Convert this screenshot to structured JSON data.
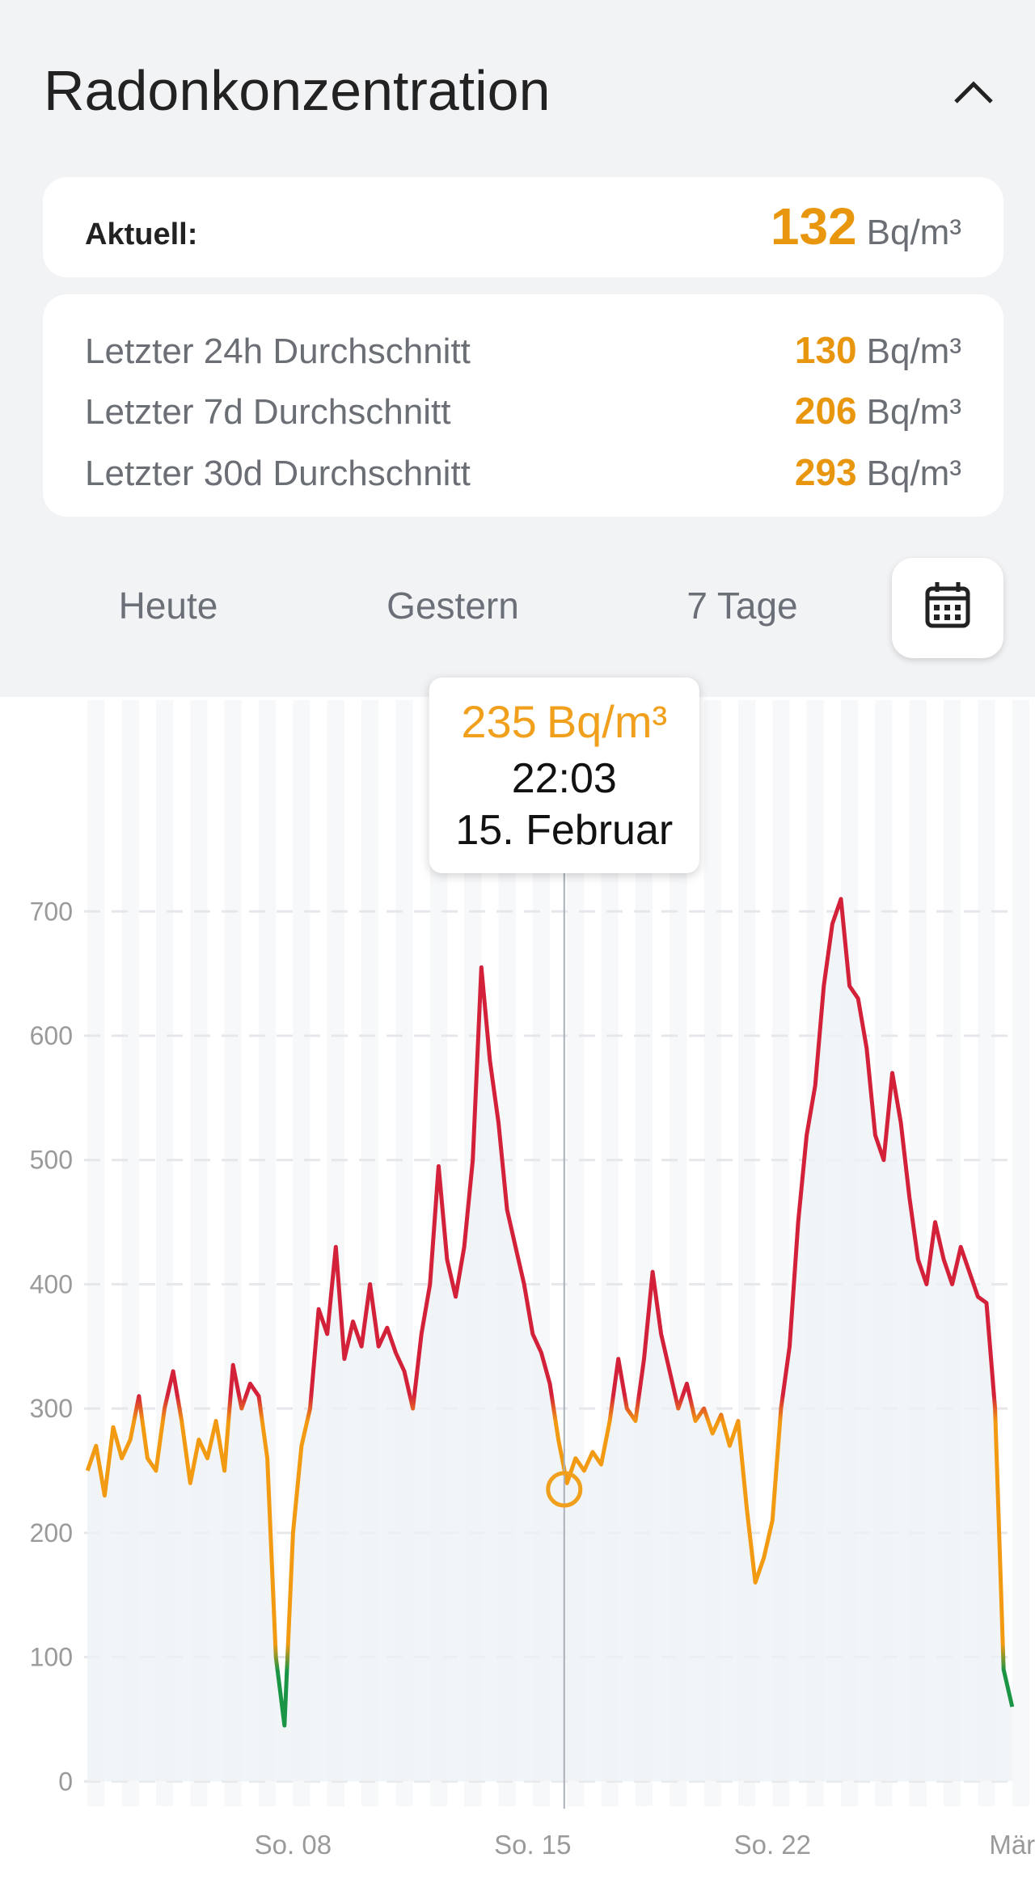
{
  "header": {
    "title": "Radonkonzentration"
  },
  "current": {
    "label": "Aktuell:",
    "value": 132,
    "unit": "Bq/m³"
  },
  "averages": [
    {
      "label": "Letzter 24h Durchschnitt",
      "value": 130,
      "unit": "Bq/m³"
    },
    {
      "label": "Letzter 7d Durchschnitt",
      "value": 206,
      "unit": "Bq/m³"
    },
    {
      "label": "Letzter 30d Durchschnitt",
      "value": 293,
      "unit": "Bq/m³"
    }
  ],
  "tabs": [
    "Heute",
    "Gestern",
    "7 Tage"
  ],
  "tooltip": {
    "value": 235,
    "unit": "Bq/m³",
    "time": "22:03",
    "date": "15. Februar",
    "x": 15.92
  },
  "chart_data": {
    "type": "line",
    "x": [
      2,
      2.25,
      2.5,
      2.75,
      3,
      3.25,
      3.5,
      3.75,
      4,
      4.25,
      4.5,
      4.75,
      5,
      5.25,
      5.5,
      5.75,
      6,
      6.25,
      6.5,
      6.75,
      7,
      7.25,
      7.5,
      7.75,
      8,
      8.25,
      8.5,
      8.75,
      9,
      9.25,
      9.5,
      9.75,
      10,
      10.25,
      10.5,
      10.75,
      11,
      11.25,
      11.5,
      11.75,
      12,
      12.25,
      12.5,
      12.75,
      13,
      13.25,
      13.5,
      13.75,
      14,
      14.25,
      14.5,
      14.75,
      15,
      15.25,
      15.5,
      15.75,
      16,
      16.25,
      16.5,
      16.75,
      17,
      17.25,
      17.5,
      17.75,
      18,
      18.25,
      18.5,
      18.75,
      19,
      19.25,
      19.5,
      19.75,
      20,
      20.25,
      20.5,
      20.75,
      21,
      21.25,
      21.5,
      21.75,
      22,
      22.25,
      22.5,
      22.75,
      23,
      23.25,
      23.5,
      23.75,
      24,
      24.25,
      24.5,
      24.75,
      25,
      25.25,
      25.5,
      25.75,
      26,
      26.25,
      26.5,
      26.75,
      27,
      27.25,
      27.5,
      27.75,
      28,
      28.25,
      28.5,
      28.75,
      29
    ],
    "values": [
      250,
      270,
      230,
      285,
      260,
      275,
      310,
      260,
      250,
      300,
      330,
      290,
      240,
      275,
      260,
      290,
      250,
      335,
      300,
      320,
      310,
      260,
      100,
      45,
      200,
      270,
      300,
      380,
      360,
      430,
      340,
      370,
      350,
      400,
      350,
      365,
      345,
      330,
      300,
      360,
      400,
      495,
      420,
      390,
      430,
      500,
      655,
      580,
      530,
      460,
      430,
      400,
      360,
      345,
      320,
      275,
      240,
      260,
      250,
      265,
      255,
      290,
      340,
      300,
      290,
      340,
      410,
      360,
      330,
      300,
      320,
      290,
      300,
      280,
      295,
      270,
      290,
      220,
      160,
      180,
      210,
      300,
      350,
      450,
      520,
      560,
      640,
      690,
      710,
      640,
      630,
      590,
      520,
      500,
      570,
      530,
      470,
      420,
      400,
      450,
      420,
      400,
      430,
      410,
      390,
      385,
      300,
      90,
      60
    ],
    "xlim": [
      1.9,
      29.1
    ],
    "xticks": [
      {
        "value": 8,
        "label": "So. 08"
      },
      {
        "value": 15,
        "label": "So. 15"
      },
      {
        "value": 22,
        "label": "So. 22"
      },
      {
        "value": 29,
        "label": "Mär"
      }
    ],
    "ylim": [
      -20,
      870
    ],
    "yticks": [
      0,
      100,
      200,
      300,
      400,
      500,
      600,
      700
    ],
    "grid": true,
    "thresholds": [
      100,
      300
    ],
    "colors": {
      "low": "#1a9445",
      "mid": "#f29a12",
      "high": "#d3213a"
    }
  }
}
